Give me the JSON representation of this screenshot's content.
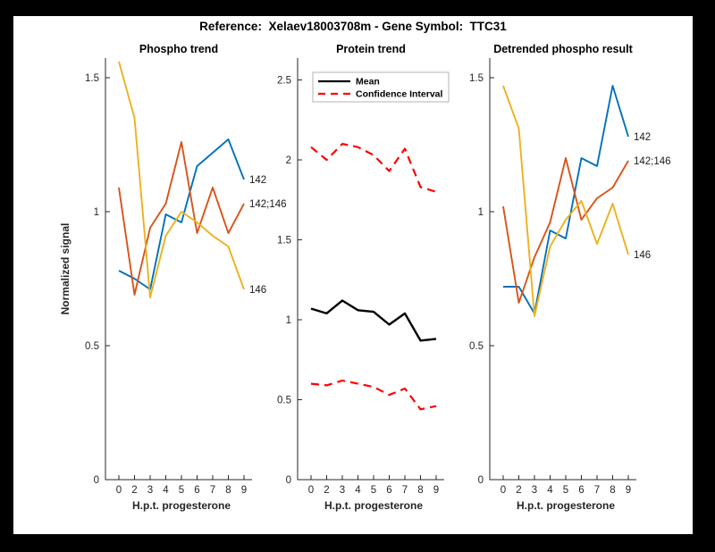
{
  "title": "Reference:  Xelaev18003708m - Gene Symbol:  TTC31",
  "figure": {
    "background": "#ffffff",
    "frame_color": "#000000",
    "axis_color": "#262626"
  },
  "y_axis_label": "Normalized signal",
  "chart_data": [
    {
      "type": "line",
      "title": "Phospho trend",
      "xlabel": "H.p.t. progesterone",
      "ylabel": "Normalized signal",
      "categories": [
        "0",
        "2",
        "3",
        "4",
        "5",
        "6",
        "7",
        "8",
        "9"
      ],
      "ylim": [
        0,
        1.5733
      ],
      "yticks": [
        "0",
        "0.5",
        "1",
        "1.5"
      ],
      "grid": false,
      "legend": null,
      "series": [
        {
          "name": "142",
          "color": "#0072BD",
          "dashed": false,
          "width": 1.9,
          "end_label": "142",
          "values": [
            0.78,
            0.75,
            0.71,
            0.99,
            0.96,
            1.17,
            1.22,
            1.27,
            1.12
          ]
        },
        {
          "name": "142;146",
          "color": "#D95319",
          "dashed": false,
          "width": 1.9,
          "end_label": "142;146",
          "values": [
            1.09,
            0.69,
            0.94,
            1.03,
            1.26,
            0.92,
            1.09,
            0.92,
            1.03
          ]
        },
        {
          "name": "146",
          "color": "#EDB120",
          "dashed": false,
          "width": 1.9,
          "end_label": "146",
          "values": [
            1.56,
            1.35,
            0.68,
            0.91,
            1.0,
            0.96,
            0.91,
            0.87,
            0.71
          ]
        }
      ]
    },
    {
      "type": "line",
      "title": "Protein trend",
      "xlabel": "H.p.t. progesterone",
      "ylabel": null,
      "categories": [
        "0",
        "2",
        "3",
        "4",
        "5",
        "6",
        "7",
        "8",
        "9"
      ],
      "ylim": [
        0,
        2.6369
      ],
      "yticks": [
        "0",
        "0.5",
        "1",
        "1.5",
        "2",
        "2.5"
      ],
      "grid": false,
      "legend": {
        "position": "northwest",
        "entries": [
          {
            "label": "Mean",
            "color": "#000000",
            "dashed": false
          },
          {
            "label": "Confidence Interval",
            "color": "#ff0000",
            "dashed": true
          }
        ]
      },
      "series": [
        {
          "name": "Mean",
          "color": "#000000",
          "dashed": false,
          "width": 2.4,
          "end_label": null,
          "values": [
            1.07,
            1.04,
            1.12,
            1.06,
            1.05,
            0.97,
            1.04,
            0.87,
            0.88
          ]
        },
        {
          "name": "Confidence Interval upper",
          "color": "#ff0000",
          "dashed": true,
          "width": 2.2,
          "end_label": null,
          "values": [
            2.08,
            2.0,
            2.1,
            2.08,
            2.03,
            1.93,
            2.07,
            1.83,
            1.8
          ]
        },
        {
          "name": "Confidence Interval lower",
          "color": "#ff0000",
          "dashed": true,
          "width": 2.2,
          "end_label": null,
          "values": [
            0.6,
            0.59,
            0.62,
            0.6,
            0.58,
            0.53,
            0.57,
            0.44,
            0.46
          ]
        }
      ]
    },
    {
      "type": "line",
      "title": "Detrended phospho result",
      "xlabel": "H.p.t. progesterone",
      "ylabel": null,
      "categories": [
        "0",
        "2",
        "3",
        "4",
        "5",
        "6",
        "7",
        "8",
        "9"
      ],
      "ylim": [
        0,
        1.5733
      ],
      "yticks": [
        "0",
        "0.5",
        "1",
        "1.5"
      ],
      "grid": false,
      "legend": null,
      "series": [
        {
          "name": "142",
          "color": "#0072BD",
          "dashed": false,
          "width": 1.9,
          "end_label": "142",
          "values": [
            0.72,
            0.72,
            0.62,
            0.93,
            0.9,
            1.2,
            1.17,
            1.47,
            1.28
          ]
        },
        {
          "name": "142;146",
          "color": "#D95319",
          "dashed": false,
          "width": 1.9,
          "end_label": "142;146",
          "values": [
            1.02,
            0.66,
            0.83,
            0.96,
            1.2,
            0.97,
            1.05,
            1.09,
            1.19
          ]
        },
        {
          "name": "146",
          "color": "#EDB120",
          "dashed": false,
          "width": 1.9,
          "end_label": "146",
          "values": [
            1.47,
            1.31,
            0.61,
            0.87,
            0.97,
            1.04,
            0.88,
            1.03,
            0.84
          ]
        }
      ]
    }
  ]
}
